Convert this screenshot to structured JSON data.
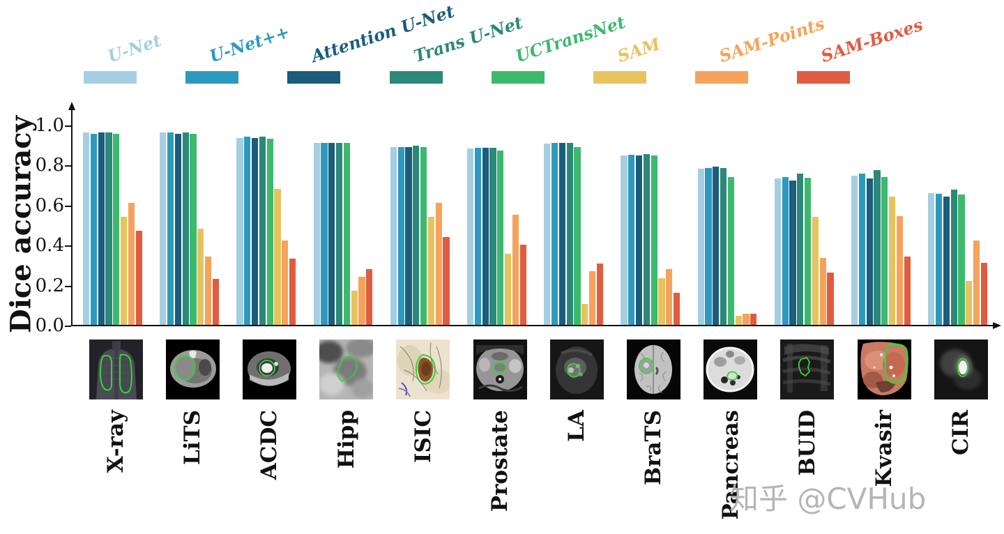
{
  "watermark": "知乎 @CVHub",
  "chart_data": {
    "type": "bar",
    "title": "",
    "xlabel": "",
    "ylabel": "Dice accuracy",
    "ylim": [
      0,
      1.0
    ],
    "yticks": [
      0.0,
      0.2,
      0.4,
      0.6,
      0.8,
      1.0
    ],
    "grid": false,
    "legend_position": "top",
    "categories": [
      "X-ray",
      "LiTS",
      "ACDC",
      "Hipp",
      "ISIC",
      "Prostate",
      "LA",
      "BraTS",
      "Pancreas",
      "BUID",
      "Kvasir",
      "CIR"
    ],
    "series": [
      {
        "name": "U-Net",
        "color": "#a6cee3",
        "values": [
          0.96,
          0.96,
          0.935,
          0.91,
          0.89,
          0.88,
          0.905,
          0.845,
          0.78,
          0.73,
          0.745,
          0.66
        ]
      },
      {
        "name": "U-Net++",
        "color": "#2c9abf",
        "values": [
          0.955,
          0.96,
          0.94,
          0.91,
          0.89,
          0.885,
          0.91,
          0.85,
          0.785,
          0.74,
          0.755,
          0.655
        ]
      },
      {
        "name": "Attention U-Net",
        "color": "#1a5d7d",
        "values": [
          0.96,
          0.955,
          0.935,
          0.91,
          0.89,
          0.885,
          0.91,
          0.845,
          0.79,
          0.72,
          0.73,
          0.64
        ]
      },
      {
        "name": "Trans U-Net",
        "color": "#2c8878",
        "values": [
          0.96,
          0.96,
          0.94,
          0.91,
          0.895,
          0.885,
          0.91,
          0.855,
          0.785,
          0.755,
          0.775,
          0.675
        ]
      },
      {
        "name": "UCTransNet",
        "color": "#3db96e",
        "values": [
          0.955,
          0.955,
          0.93,
          0.91,
          0.89,
          0.87,
          0.89,
          0.845,
          0.74,
          0.735,
          0.74,
          0.65
        ]
      },
      {
        "name": "SAM",
        "color": "#e7c360",
        "values": [
          0.54,
          0.48,
          0.68,
          0.17,
          0.54,
          0.355,
          0.105,
          0.235,
          0.045,
          0.54,
          0.64,
          0.22
        ]
      },
      {
        "name": "SAM-Points",
        "color": "#f5a35c",
        "values": [
          0.61,
          0.34,
          0.42,
          0.24,
          0.61,
          0.55,
          0.27,
          0.28,
          0.055,
          0.335,
          0.545,
          0.42
        ]
      },
      {
        "name": "SAM-Boxes",
        "color": "#e05c41",
        "values": [
          0.47,
          0.23,
          0.33,
          0.28,
          0.44,
          0.4,
          0.305,
          0.16,
          0.055,
          0.26,
          0.34,
          0.31
        ]
      }
    ]
  },
  "thumbnails": [
    {
      "id": "xray",
      "alt": "chest x-ray with green lung segmentation contours"
    },
    {
      "id": "lits",
      "alt": "abdominal CT with green liver contour"
    },
    {
      "id": "acdc",
      "alt": "cardiac MRI with green ventricle contour"
    },
    {
      "id": "hipp",
      "alt": "blurry brain MRI with green hippocampus contour"
    },
    {
      "id": "isic",
      "alt": "dermoscopy skin lesion with green contour"
    },
    {
      "id": "prostate",
      "alt": "pelvic MRI with green prostate contour"
    },
    {
      "id": "la",
      "alt": "cardiac MRI with green left-atrium contour"
    },
    {
      "id": "brats",
      "alt": "brain MRI with green tumor contour"
    },
    {
      "id": "pancreas",
      "alt": "abdominal CT with green pancreas contour"
    },
    {
      "id": "buid",
      "alt": "breast ultrasound with green lesion contour"
    },
    {
      "id": "kvasir",
      "alt": "endoscopy image with green polyp contour"
    },
    {
      "id": "cir",
      "alt": "lung nodule CT with green nodule contour"
    }
  ]
}
